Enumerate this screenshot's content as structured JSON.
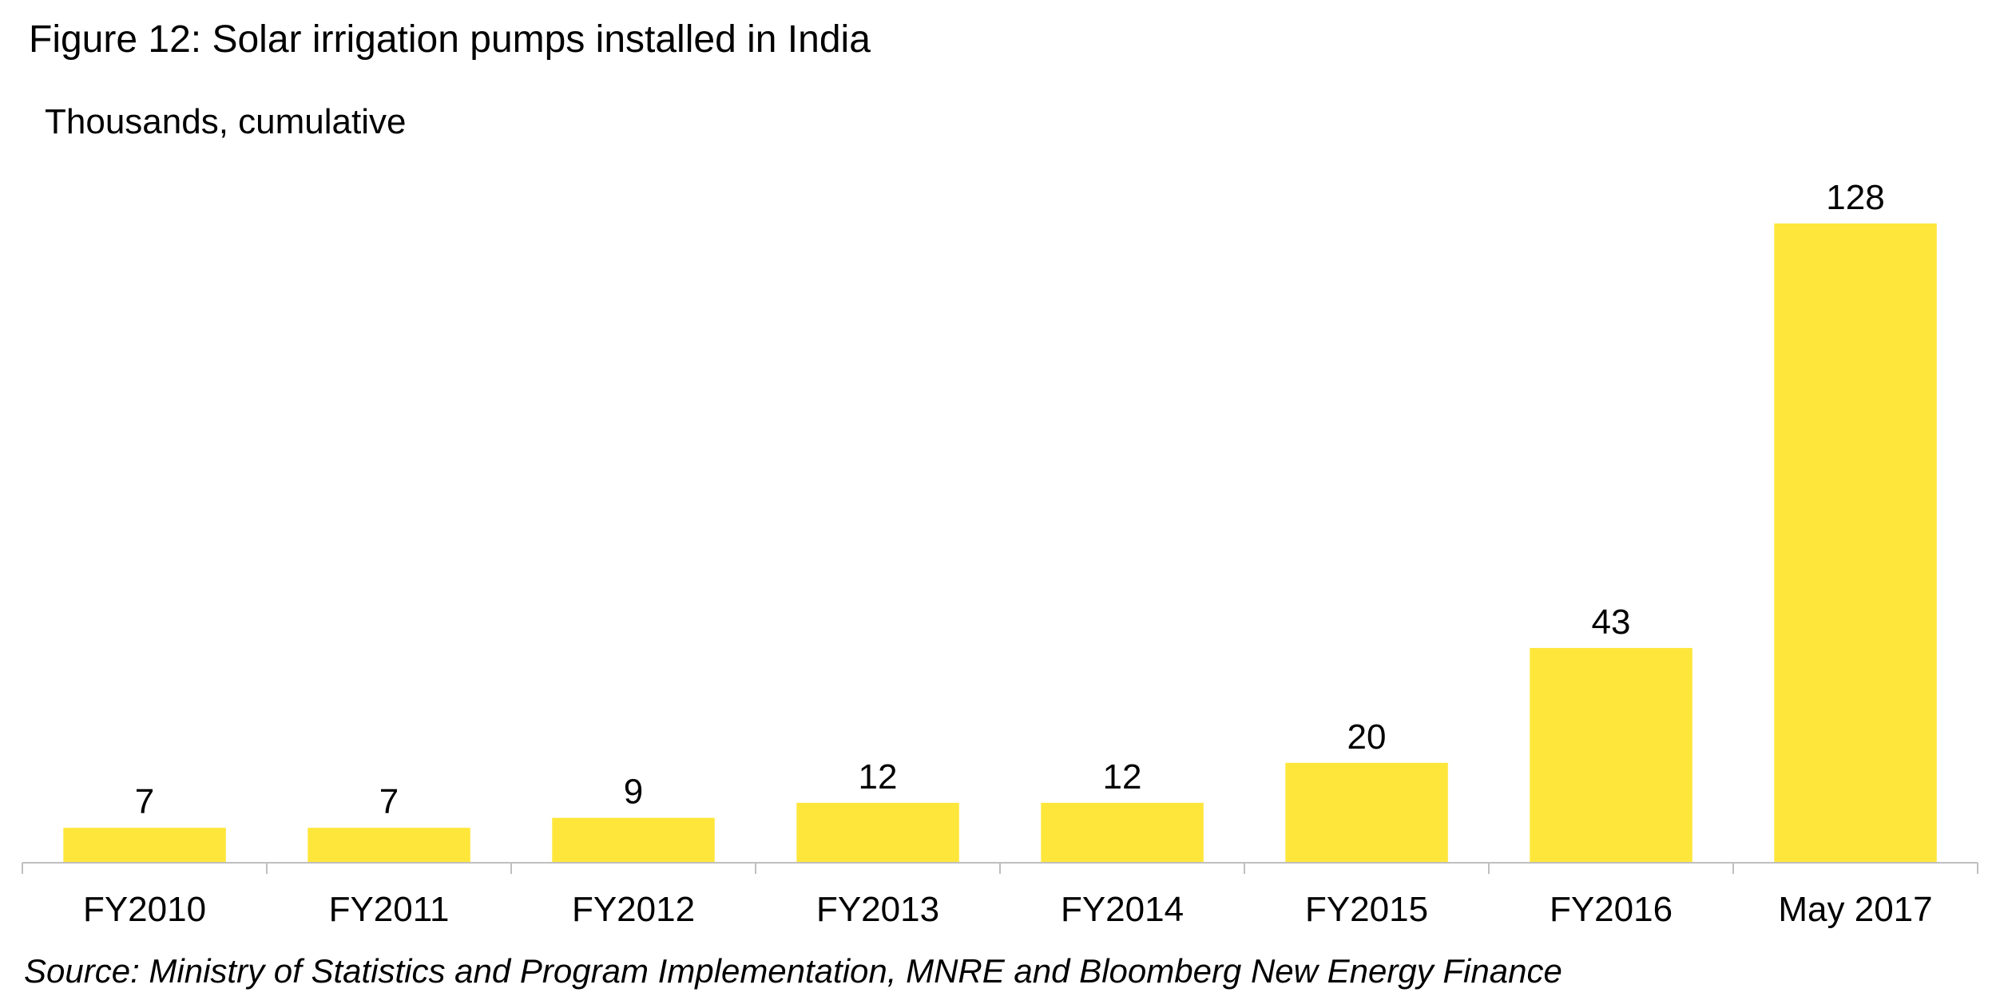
{
  "chart_data": {
    "type": "bar",
    "title": "Figure 12: Solar irrigation pumps installed in India",
    "subtitle": "Thousands, cumulative",
    "xlabel": "",
    "ylabel": "",
    "categories": [
      "FY2010",
      "FY2011",
      "FY2012",
      "FY2013",
      "FY2014",
      "FY2015",
      "FY2016",
      "May 2017"
    ],
    "values": [
      7,
      7,
      9,
      12,
      12,
      20,
      43,
      128
    ],
    "data_labels": [
      "7",
      "7",
      "9",
      "12",
      "12",
      "20",
      "43",
      "128"
    ],
    "ylim": [
      0,
      128
    ],
    "grid": false,
    "legend": "none",
    "bar_color": "#FFE63B",
    "axis_color": "#BFBFBF",
    "source": "Source: Ministry of Statistics and Program Implementation, MNRE and Bloomberg New Energy Finance"
  }
}
